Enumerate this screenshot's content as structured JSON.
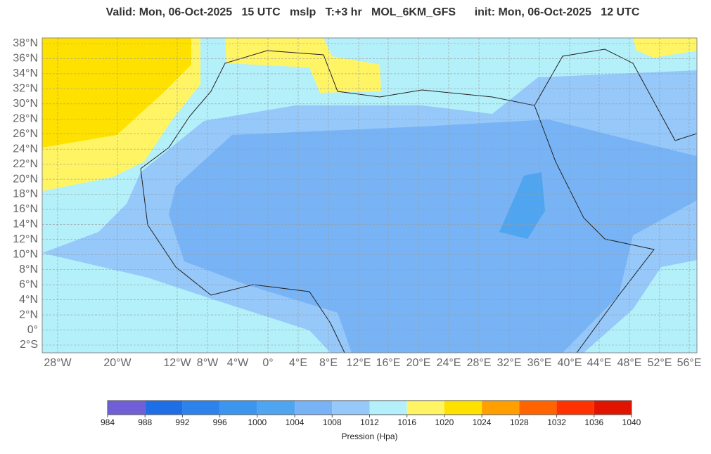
{
  "header": {
    "title": "Valid: Mon, 06-Oct-2025   15 UTC   mslp   T:+3 hr   MOL_6KM_GFS      init: Mon, 06-Oct-2025   12 UTC"
  },
  "map": {
    "lat_labels": [
      "38°N",
      "36°N",
      "34°N",
      "32°N",
      "30°N",
      "28°N",
      "26°N",
      "24°N",
      "22°N",
      "20°N",
      "18°N",
      "16°N",
      "14°N",
      "12°N",
      "10°N",
      "8°N",
      "6°N",
      "4°N",
      "2°N",
      "0°",
      "2°S"
    ],
    "lon_labels": [
      "28°W",
      "20°W",
      "12°W",
      "8°W",
      "4°W",
      "0°",
      "4°E",
      "8°E",
      "12°E",
      "16°E",
      "20°E",
      "24°E",
      "28°E",
      "32°E",
      "36°E",
      "40°E",
      "44°E",
      "48°E",
      "52°E",
      "56°E"
    ]
  },
  "colorbar": {
    "ticks": [
      984,
      988,
      992,
      996,
      1000,
      1004,
      1008,
      1012,
      1016,
      1020,
      1024,
      1028,
      1032,
      1036,
      1040
    ],
    "colors": [
      "#7060d8",
      "#1e6ee6",
      "#2d82ec",
      "#3c96f0",
      "#50a5f0",
      "#78b4f5",
      "#96c8fa",
      "#b4f0fa",
      "#fff564",
      "#ffe100",
      "#ffa000",
      "#ff6400",
      "#ff3200",
      "#e11400"
    ],
    "label": "Pression (Hpa)"
  }
}
